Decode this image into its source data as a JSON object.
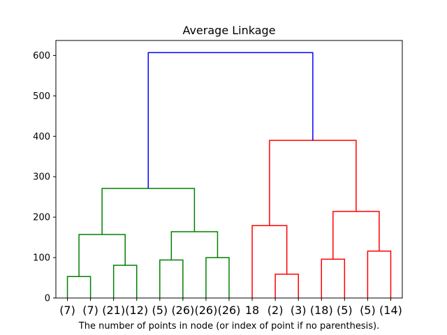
{
  "chart_data": {
    "type": "dendrogram",
    "title": "Average Linkage",
    "xlabel": "The number of points in node (or index of point if no parenthesis).",
    "ylabel": "",
    "ylim": [
      0,
      637
    ],
    "yticks": [
      0,
      100,
      200,
      300,
      400,
      500,
      600
    ],
    "grid": false,
    "leaves": [
      "(7)",
      "(7)",
      "(21)",
      "(12)",
      "(5)",
      "(26)",
      "(26)",
      "(26)",
      "18",
      "(2)",
      "(3)",
      "(18)",
      "(5)",
      "(5)",
      "(14)"
    ],
    "colors": {
      "cluster1": "#008000",
      "cluster2": "#ff0000",
      "root": "#0000ff"
    },
    "merges": [
      {
        "left": 0,
        "right": 1,
        "height": 53,
        "color": "cluster1"
      },
      {
        "left": 2,
        "right": 3,
        "height": 81,
        "color": "cluster1"
      },
      {
        "left": 4,
        "right": 5,
        "height": 94,
        "color": "cluster1"
      },
      {
        "left": 6,
        "right": 7,
        "height": 100,
        "color": "cluster1"
      },
      {
        "left": "m0",
        "right": "m1",
        "height": 157,
        "color": "cluster1"
      },
      {
        "left": "m2",
        "right": "m3",
        "height": 164,
        "color": "cluster1"
      },
      {
        "left": "m4",
        "right": "m5",
        "height": 271,
        "color": "cluster1"
      },
      {
        "left": 9,
        "right": 10,
        "height": 59,
        "color": "cluster2"
      },
      {
        "left": 8,
        "right": "m7",
        "height": 179,
        "color": "cluster2"
      },
      {
        "left": 11,
        "right": 12,
        "height": 96,
        "color": "cluster2"
      },
      {
        "left": 13,
        "right": 14,
        "height": 116,
        "color": "cluster2"
      },
      {
        "left": "m9",
        "right": "m10",
        "height": 214,
        "color": "cluster2"
      },
      {
        "left": "m8",
        "right": "m11",
        "height": 390,
        "color": "cluster2"
      },
      {
        "left": "m6",
        "right": "m12",
        "height": 607,
        "color": "root"
      }
    ]
  }
}
